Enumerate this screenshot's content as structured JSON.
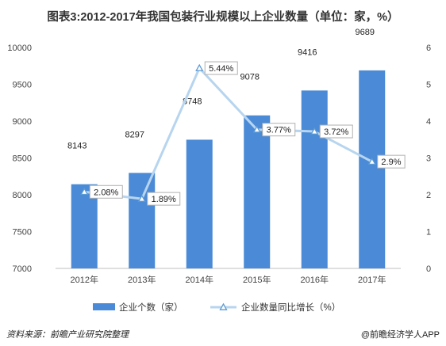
{
  "title": "图表3:2012-2017年我国包装行业规模以上企业数量（单位：家，%）",
  "footer": {
    "source": "资料来源：前瞻产业研究院整理",
    "brand": "@前瞻经济学人APP"
  },
  "colors": {
    "bar": "#4a8ad6",
    "line": "#b7d5ef",
    "marker": "#5b9bd5"
  },
  "chart_data": {
    "type": "bar",
    "categories": [
      "2012年",
      "2013年",
      "2014年",
      "2015年",
      "2016年",
      "2017年"
    ],
    "series": [
      {
        "name": "企业个数（家）",
        "type": "bar",
        "axis": "left",
        "values": [
          8143,
          8297,
          8748,
          9078,
          9416,
          9689
        ],
        "labels": [
          "8143",
          "8297",
          "8748",
          "9078",
          "9416",
          "9689"
        ]
      },
      {
        "name": "企业数量同比增长（%）",
        "type": "line",
        "axis": "right",
        "values": [
          2.08,
          1.89,
          5.44,
          3.77,
          3.72,
          2.9
        ],
        "labels": [
          "2.08%",
          "1.89%",
          "5.44%",
          "3.77%",
          "3.72%",
          "2.9%"
        ]
      }
    ],
    "y_left": {
      "min": 7000,
      "max": 10000,
      "ticks": [
        "7000",
        "7500",
        "8000",
        "8500",
        "9000",
        "9500",
        "10000"
      ]
    },
    "y_right": {
      "min": 0,
      "max": 6,
      "ticks": [
        "0",
        "1",
        "2",
        "3",
        "4",
        "5",
        "6"
      ]
    },
    "grid": false,
    "legend": "bottom"
  }
}
